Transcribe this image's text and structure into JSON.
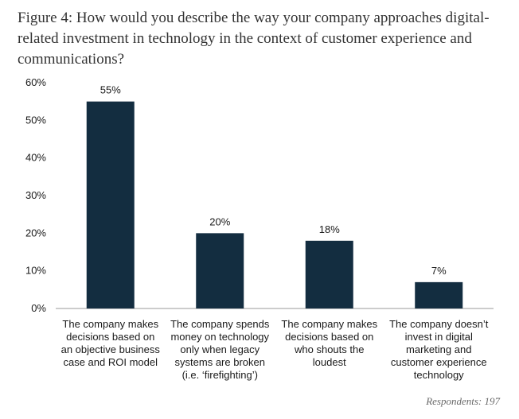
{
  "chart_data": {
    "type": "bar",
    "title": "Figure 4: How would you describe the way your company approaches digital-related investment in technology in the context of customer experience and communications?",
    "title_lines": [
      "Figure 4: How would you describe the way your company approaches digital-",
      "related investment in technology in the context of customer experience and",
      "communications?"
    ],
    "categories": [
      "The company makes decisions based on an objective business case and ROI model",
      "The company spends money on technology only when legacy systems are broken (i.e. ‘firefighting’)",
      "The company makes decisions based on who shouts the loudest",
      "The company doesn’t invest in digital marketing and customer experience technology"
    ],
    "category_lines": [
      [
        "The company makes",
        "decisions based on",
        "an objective business",
        "case and ROI model"
      ],
      [
        "The company spends",
        "money on technology",
        "only when legacy",
        "systems are broken",
        "(i.e. ‘firefighting’)"
      ],
      [
        "The company makes",
        "decisions based on",
        "who shouts the",
        "loudest"
      ],
      [
        "The company doesn’t",
        "invest in digital",
        "marketing and",
        "customer experience",
        "technology"
      ]
    ],
    "values": [
      55,
      20,
      18,
      7
    ],
    "value_labels": [
      "55%",
      "20%",
      "18%",
      "7%"
    ],
    "yticks": [
      0,
      10,
      20,
      30,
      40,
      50,
      60
    ],
    "ytick_labels": [
      "0%",
      "10%",
      "20%",
      "30%",
      "40%",
      "50%",
      "60%"
    ],
    "ylim": [
      0,
      60
    ],
    "xlabel": "",
    "ylabel": "",
    "grid": false,
    "legend": "none",
    "bar_color": "#132d40",
    "axis_color": "#999999"
  },
  "footnote": "Respondents: 197"
}
